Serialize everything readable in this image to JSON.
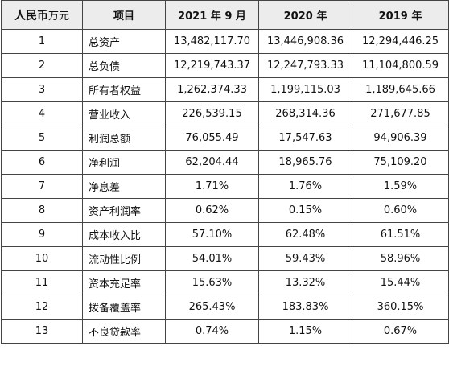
{
  "table": {
    "header": {
      "unit_main": "人民币",
      "unit_suffix": "万元",
      "item": "项目",
      "col_2021": "2021 年 9 月",
      "col_2020": "2020 年",
      "col_2019": "2019 年"
    },
    "rows": [
      {
        "no": "1",
        "item": "总资产",
        "v2021": "13,482,117.70",
        "v2020": "13,446,908.36",
        "v2019": "12,294,446.25"
      },
      {
        "no": "2",
        "item": "总负债",
        "v2021": "12,219,743.37",
        "v2020": "12,247,793.33",
        "v2019": "11,104,800.59"
      },
      {
        "no": "3",
        "item": "所有者权益",
        "v2021": "1,262,374.33",
        "v2020": "1,199,115.03",
        "v2019": "1,189,645.66"
      },
      {
        "no": "4",
        "item": "营业收入",
        "v2021": "226,539.15",
        "v2020": "268,314.36",
        "v2019": "271,677.85"
      },
      {
        "no": "5",
        "item": "利润总额",
        "v2021": "76,055.49",
        "v2020": "17,547.63",
        "v2019": "94,906.39"
      },
      {
        "no": "6",
        "item": "净利润",
        "v2021": "62,204.44",
        "v2020": "18,965.76",
        "v2019": "75,109.20"
      },
      {
        "no": "7",
        "item": "净息差",
        "v2021": "1.71%",
        "v2020": "1.76%",
        "v2019": "1.59%"
      },
      {
        "no": "8",
        "item": "资产利润率",
        "v2021": "0.62%",
        "v2020": "0.15%",
        "v2019": "0.60%"
      },
      {
        "no": "9",
        "item": "成本收入比",
        "v2021": "57.10%",
        "v2020": "62.48%",
        "v2019": "61.51%"
      },
      {
        "no": "10",
        "item": "流动性比例",
        "v2021": "54.01%",
        "v2020": "59.43%",
        "v2019": "58.96%"
      },
      {
        "no": "11",
        "item": "资本充足率",
        "v2021": "15.63%",
        "v2020": "13.32%",
        "v2019": "15.44%"
      },
      {
        "no": "12",
        "item": "拨备覆盖率",
        "v2021": "265.43%",
        "v2020": "183.83%",
        "v2019": "360.15%"
      },
      {
        "no": "13",
        "item": "不良贷款率",
        "v2021": "0.74%",
        "v2020": "1.15%",
        "v2019": "0.67%"
      }
    ]
  }
}
